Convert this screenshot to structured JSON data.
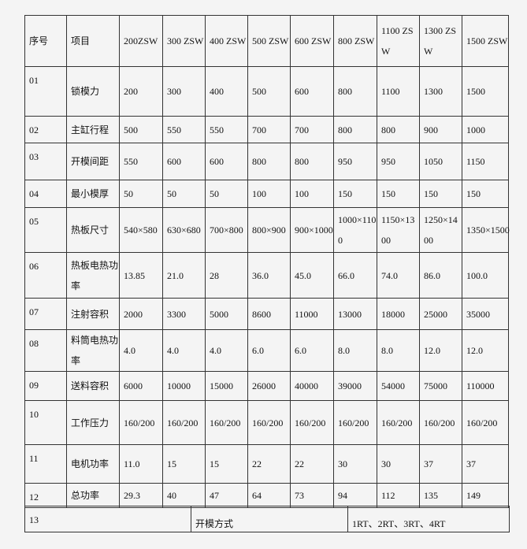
{
  "header": [
    "序号",
    "项目",
    "200ZSW",
    "300 ZSW",
    "400 ZSW",
    "500 ZSW",
    "600 ZSW",
    "800 ZSW",
    "1100 ZSW",
    "1300 ZSW",
    "1500 ZSW"
  ],
  "rows": [
    {
      "no": "01",
      "item": "锁模力",
      "values": [
        "200",
        "300",
        "400",
        "500",
        "600",
        "800",
        "1100",
        "1300",
        "1500"
      ]
    },
    {
      "no": "02",
      "item": "主缸行程",
      "values": [
        "500",
        "550",
        "550",
        "700",
        "700",
        "800",
        "800",
        "900",
        "1000"
      ]
    },
    {
      "no": "03",
      "item": "开模间距",
      "values": [
        "550",
        "600",
        "600",
        "800",
        "800",
        "950",
        "950",
        "1050",
        "1150"
      ]
    },
    {
      "no": "04",
      "item": "最小模厚",
      "values": [
        "50",
        "50",
        "50",
        "100",
        "100",
        "150",
        "150",
        "150",
        "150"
      ]
    },
    {
      "no": "05",
      "item": "热板尺寸",
      "values": [
        "540×580",
        "630×680",
        "700×800",
        "800×900",
        "900×1000",
        "1000×1100",
        "1150×1300",
        "1250×1400",
        "1350×1500"
      ]
    },
    {
      "no": "06",
      "item": "热板电热功率",
      "values": [
        "13.85",
        "21.0",
        "28",
        "36.0",
        "45.0",
        "66.0",
        "74.0",
        "86.0",
        "100.0"
      ]
    },
    {
      "no": "07",
      "item": "注射容积",
      "values": [
        "2000",
        "3300",
        "5000",
        "8600",
        "11000",
        "13000",
        "18000",
        "25000",
        "35000"
      ]
    },
    {
      "no": "08",
      "item": "料筒电热功率",
      "values": [
        "4.0",
        "4.0",
        "4.0",
        "6.0",
        "6.0",
        "8.0",
        "8.0",
        "12.0",
        "12.0"
      ]
    },
    {
      "no": "09",
      "item": "送料容积",
      "values": [
        "6000",
        "10000",
        "15000",
        "26000",
        "40000",
        "39000",
        "54000",
        "75000",
        "110000"
      ]
    },
    {
      "no": "10",
      "item": "工作压力",
      "values": [
        "160/200",
        "160/200",
        "160/200",
        "160/200",
        "160/200",
        "160/200",
        "160/200",
        "160/200",
        "160/200"
      ]
    },
    {
      "no": "11",
      "item": "电机功率",
      "values": [
        "11.0",
        "15",
        "15",
        "22",
        "22",
        "30",
        "30",
        "37",
        "37"
      ]
    },
    {
      "no": "12",
      "item": "总功率",
      "values": [
        "29.3",
        "40",
        "47",
        "64",
        "73",
        "94",
        "112",
        "135",
        "149"
      ]
    }
  ],
  "footer": {
    "no": "13",
    "label": "开模方式",
    "value": "1RT、2RT、3RT、4RT"
  }
}
